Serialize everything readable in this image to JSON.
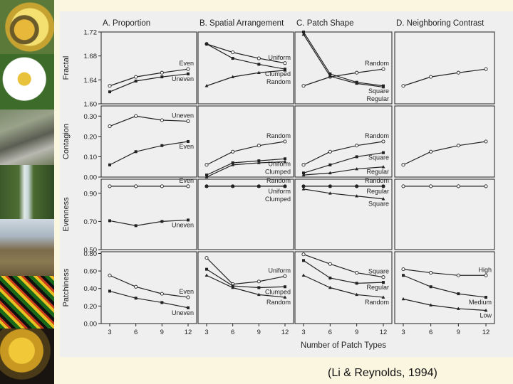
{
  "citation": "(Li & Reynolds, 1994)",
  "colors": {
    "slide_background": "#fbf6df",
    "chart_background": "#efefef",
    "ink": "#222222"
  },
  "photo_strip": [
    {
      "name": "bee-on-flower-photo"
    },
    {
      "name": "white-daisy-photo"
    },
    {
      "name": "rocky-stream-photo"
    },
    {
      "name": "waterfall-photo"
    },
    {
      "name": "mountain-landscape-photo"
    },
    {
      "name": "landcover-map-photo"
    },
    {
      "name": "autumn-foliage-photo"
    }
  ],
  "chart_data": {
    "type": "line",
    "x": [
      3,
      6,
      9,
      12
    ],
    "xlabel": "Number of Patch Types",
    "columns": [
      "A. Proportion",
      "B. Spatial Arrangement",
      "C. Patch Shape",
      "D. Neighboring Contrast"
    ],
    "rows": [
      {
        "ylabel": "Fractal",
        "ylim": [
          1.6,
          1.72
        ],
        "ticks": [
          "1.72",
          "1.68",
          "1.64",
          "1.60"
        ],
        "tick_values": [
          1.72,
          1.68,
          1.64,
          1.6
        ]
      },
      {
        "ylabel": "Contagion",
        "ylim": [
          0.0,
          0.35
        ],
        "ticks": [
          "0.30",
          "0.20",
          "0.10",
          "0.00"
        ],
        "tick_values": [
          0.3,
          0.2,
          0.1,
          0.0
        ]
      },
      {
        "ylabel": "Evenness",
        "ylim": [
          0.5,
          1.0
        ],
        "ticks": [
          "0.90",
          "0.70",
          "0.50"
        ],
        "tick_values": [
          0.9,
          0.7,
          0.5
        ]
      },
      {
        "ylabel": "Patchiness",
        "ylim": [
          0.0,
          0.82
        ],
        "ticks": [
          "0.80",
          "0.60",
          "0.40",
          "0.20",
          "0.00"
        ],
        "tick_values": [
          0.8,
          0.6,
          0.4,
          0.2,
          0.0
        ]
      }
    ],
    "panels": [
      {
        "row": 0,
        "col": 0,
        "series": [
          {
            "name": "Even",
            "values": [
              1.63,
              1.645,
              1.652,
              1.658
            ]
          },
          {
            "name": "Uneven",
            "values": [
              1.62,
              1.638,
              1.645,
              1.65
            ]
          }
        ]
      },
      {
        "row": 0,
        "col": 1,
        "series": [
          {
            "name": "Uniform",
            "values": [
              1.7,
              1.686,
              1.676,
              1.668
            ]
          },
          {
            "name": "Clumped",
            "values": [
              1.7,
              1.676,
              1.666,
              1.658
            ]
          },
          {
            "name": "Random",
            "values": [
              1.63,
              1.645,
              1.652,
              1.656
            ]
          }
        ]
      },
      {
        "row": 0,
        "col": 2,
        "series": [
          {
            "name": "Random",
            "values": [
              1.63,
              1.645,
              1.652,
              1.658
            ]
          },
          {
            "name": "Square",
            "values": [
              1.72,
              1.65,
              1.636,
              1.63
            ]
          },
          {
            "name": "Regular",
            "values": [
              1.716,
              1.646,
              1.634,
              1.628
            ]
          }
        ]
      },
      {
        "row": 0,
        "col": 3,
        "series": [
          {
            "name": "",
            "values": [
              1.63,
              1.645,
              1.652,
              1.658
            ]
          }
        ]
      },
      {
        "row": 1,
        "col": 0,
        "series": [
          {
            "name": "Uneven",
            "values": [
              0.25,
              0.3,
              0.28,
              0.275
            ]
          },
          {
            "name": "Even",
            "values": [
              0.06,
              0.125,
              0.155,
              0.175
            ]
          }
        ]
      },
      {
        "row": 1,
        "col": 1,
        "series": [
          {
            "name": "Random",
            "values": [
              0.06,
              0.125,
              0.155,
              0.175
            ]
          },
          {
            "name": "Uniform",
            "values": [
              0.01,
              0.07,
              0.08,
              0.09
            ]
          },
          {
            "name": "Clumped",
            "values": [
              0.0,
              0.06,
              0.07,
              0.075
            ]
          }
        ]
      },
      {
        "row": 1,
        "col": 2,
        "series": [
          {
            "name": "Random",
            "values": [
              0.06,
              0.125,
              0.155,
              0.175
            ]
          },
          {
            "name": "Square",
            "values": [
              0.02,
              0.06,
              0.1,
              0.12
            ]
          },
          {
            "name": "Regular",
            "values": [
              0.01,
              0.02,
              0.04,
              0.05
            ]
          }
        ]
      },
      {
        "row": 1,
        "col": 3,
        "series": [
          {
            "name": "",
            "values": [
              0.06,
              0.125,
              0.155,
              0.175
            ]
          }
        ]
      },
      {
        "row": 2,
        "col": 0,
        "series": [
          {
            "name": "Even",
            "values": [
              0.95,
              0.95,
              0.95,
              0.95
            ]
          },
          {
            "name": "Uneven",
            "values": [
              0.705,
              0.67,
              0.7,
              0.71
            ]
          }
        ]
      },
      {
        "row": 2,
        "col": 1,
        "series": [
          {
            "name": "Random",
            "values": [
              0.95,
              0.95,
              0.95,
              0.95
            ]
          },
          {
            "name": "Uniform",
            "values": [
              0.95,
              0.95,
              0.95,
              0.95
            ]
          },
          {
            "name": "Clumped",
            "values": [
              0.95,
              0.95,
              0.95,
              0.95
            ]
          }
        ]
      },
      {
        "row": 2,
        "col": 2,
        "series": [
          {
            "name": "Random",
            "values": [
              0.95,
              0.95,
              0.95,
              0.95
            ]
          },
          {
            "name": "Regular",
            "values": [
              0.95,
              0.95,
              0.95,
              0.95
            ]
          },
          {
            "name": "Square",
            "values": [
              0.93,
              0.9,
              0.88,
              0.86
            ]
          }
        ]
      },
      {
        "row": 2,
        "col": 3,
        "series": [
          {
            "name": "",
            "values": [
              0.95,
              0.95,
              0.95,
              0.95
            ]
          }
        ]
      },
      {
        "row": 3,
        "col": 0,
        "series": [
          {
            "name": "Even",
            "values": [
              0.55,
              0.42,
              0.34,
              0.3
            ]
          },
          {
            "name": "Uneven",
            "values": [
              0.37,
              0.29,
              0.24,
              0.18
            ]
          }
        ]
      },
      {
        "row": 3,
        "col": 1,
        "series": [
          {
            "name": "Uniform",
            "values": [
              0.75,
              0.45,
              0.48,
              0.54
            ]
          },
          {
            "name": "Clumped",
            "values": [
              0.62,
              0.43,
              0.41,
              0.42
            ]
          },
          {
            "name": "Random",
            "values": [
              0.55,
              0.41,
              0.33,
              0.3
            ]
          }
        ]
      },
      {
        "row": 3,
        "col": 2,
        "series": [
          {
            "name": "Square",
            "values": [
              0.79,
              0.68,
              0.58,
              0.53
            ]
          },
          {
            "name": "Regular",
            "values": [
              0.72,
              0.52,
              0.46,
              0.47
            ]
          },
          {
            "name": "Random",
            "values": [
              0.55,
              0.41,
              0.33,
              0.3
            ]
          }
        ]
      },
      {
        "row": 3,
        "col": 3,
        "series": [
          {
            "name": "High",
            "values": [
              0.62,
              0.58,
              0.55,
              0.55
            ]
          },
          {
            "name": "Medium",
            "values": [
              0.55,
              0.42,
              0.34,
              0.3
            ]
          },
          {
            "name": "Low",
            "values": [
              0.28,
              0.21,
              0.17,
              0.15
            ]
          }
        ]
      }
    ]
  }
}
